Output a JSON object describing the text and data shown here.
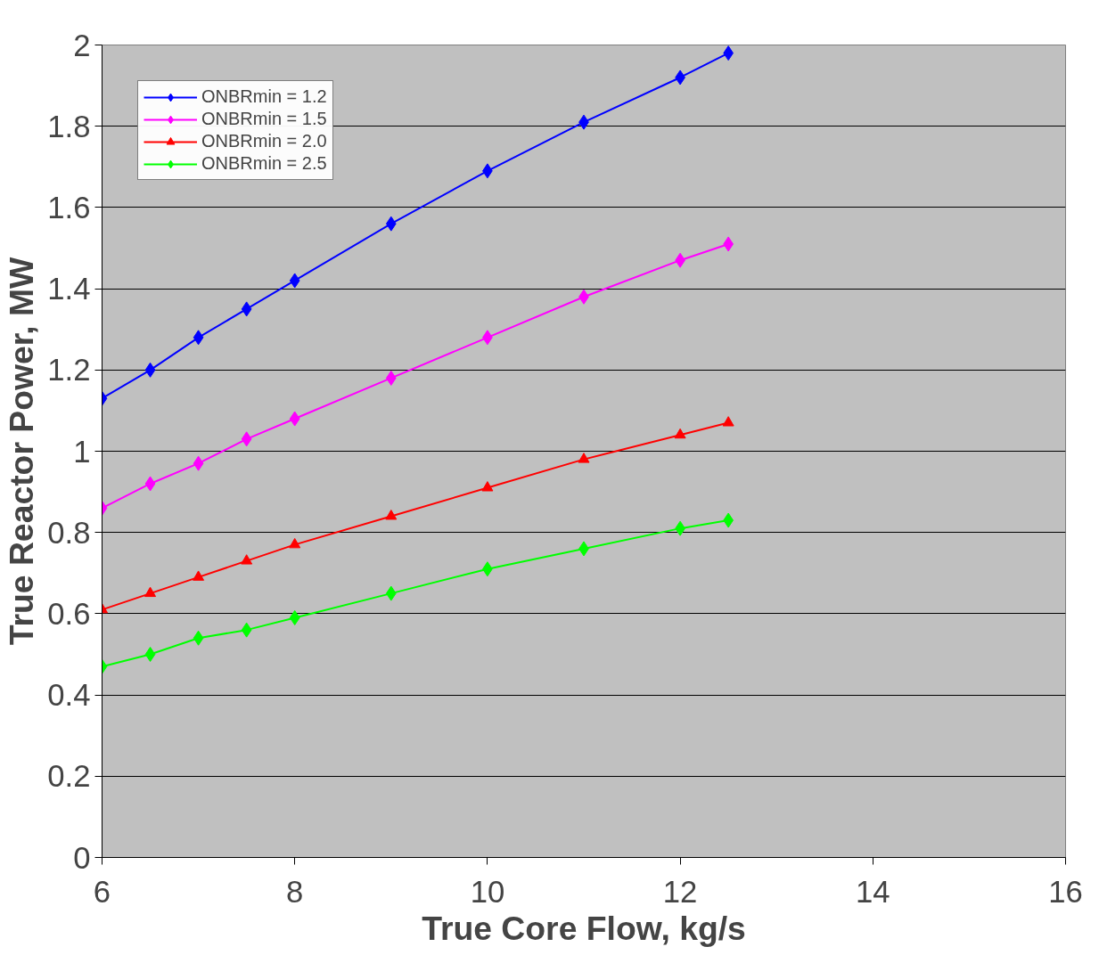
{
  "chart_data": {
    "type": "line",
    "xlabel": "True Core Flow, kg/s",
    "ylabel": "True Reactor Power, MW",
    "x": [
      6,
      6.5,
      7,
      7.5,
      8,
      9,
      10,
      11,
      12,
      12.5
    ],
    "series": [
      {
        "name": "ONBRmin = 1.2",
        "color": "#0000ff",
        "marker": "diamond",
        "values": [
          1.13,
          1.2,
          1.28,
          1.35,
          1.42,
          1.56,
          1.69,
          1.81,
          1.92,
          1.98
        ]
      },
      {
        "name": "ONBRmin = 1.5",
        "color": "#ff00ff",
        "marker": "diamond",
        "values": [
          0.86,
          0.92,
          0.97,
          1.03,
          1.08,
          1.18,
          1.28,
          1.38,
          1.47,
          1.51
        ]
      },
      {
        "name": "ONBRmin = 2.0",
        "color": "#ff0000",
        "marker": "triangle",
        "values": [
          0.61,
          0.65,
          0.69,
          0.73,
          0.77,
          0.84,
          0.91,
          0.98,
          1.04,
          1.07
        ]
      },
      {
        "name": "ONBRmin = 2.5",
        "color": "#00ff00",
        "marker": "diamond",
        "values": [
          0.47,
          0.5,
          0.54,
          0.56,
          0.59,
          0.65,
          0.71,
          0.76,
          0.81,
          0.83
        ]
      }
    ],
    "xlim": [
      6,
      16
    ],
    "xticks": [
      6,
      8,
      10,
      12,
      14,
      16
    ],
    "ylim": [
      0,
      2
    ],
    "yticks": [
      0,
      0.2,
      0.4,
      0.6,
      0.8,
      1,
      1.2,
      1.4,
      1.6,
      1.8,
      2
    ],
    "grid": "y",
    "legend": "top left",
    "line_style": "solid"
  }
}
